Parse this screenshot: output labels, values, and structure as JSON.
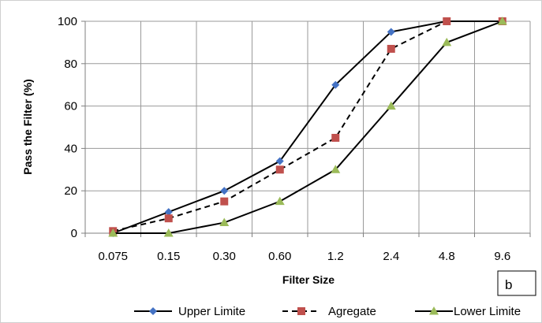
{
  "chart_data": {
    "type": "line",
    "categories": [
      "0.075",
      "0.15",
      "0.30",
      "0.60",
      "1.2",
      "2.4",
      "4.8",
      "9.6"
    ],
    "series": [
      {
        "name": "Upper Limite",
        "values": [
          0,
          10,
          20,
          34,
          70,
          95,
          100,
          100
        ],
        "color": "#4472C4",
        "line_color": "#000000",
        "dash": "solid",
        "marker": "diamond"
      },
      {
        "name": "Agregate",
        "values": [
          1,
          7,
          15,
          30,
          45,
          87,
          100,
          100
        ],
        "color": "#C0504D",
        "line_color": "#000000",
        "dash": "dashed",
        "marker": "square"
      },
      {
        "name": "Lower Limite",
        "values": [
          0,
          0,
          5,
          15,
          30,
          60,
          90,
          100
        ],
        "color": "#9BBB59",
        "line_color": "#000000",
        "dash": "solid",
        "marker": "triangle"
      }
    ],
    "title": "",
    "xlabel": "Filter Size",
    "ylabel": "Pass the Filter (%)",
    "ylim": [
      0,
      100
    ],
    "yticks": [
      0,
      20,
      40,
      60,
      80,
      100
    ],
    "grid": true,
    "legend": "bottom",
    "panel_label": "b"
  }
}
